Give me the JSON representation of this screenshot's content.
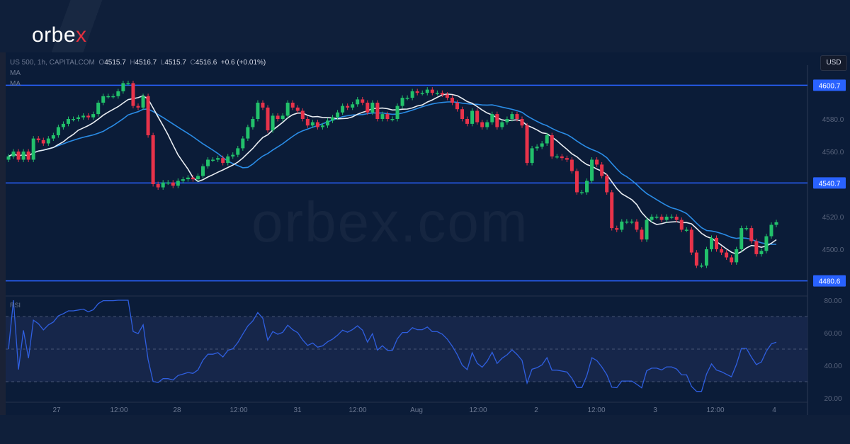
{
  "brand": {
    "logo_text": "orbe",
    "logo_x": "x",
    "watermark": "orbex.com"
  },
  "header": {
    "symbol": "US 500, 1h, CAPITALCOM",
    "o_label": "O",
    "open": "4515.7",
    "h_label": "H",
    "high": "4516.7",
    "l_label": "L",
    "low": "4515.7",
    "c_label": "C",
    "close": "4516.6",
    "change": "+0.6 (+0.01%)",
    "indicators": [
      "MA",
      "MA"
    ]
  },
  "currency_button": "USD",
  "rsi_label": "RSI",
  "colors": {
    "up": "#22c16b",
    "down": "#e8334a",
    "ma_fast": "#e9edf2",
    "ma_slow": "#2a8ce6",
    "level": "#2962ff",
    "rsi": "#2f5fe0",
    "background": "#0b1c38"
  },
  "chart_data": {
    "type": "candlestick",
    "interval": "1h",
    "price_axis": {
      "ticks": [
        "4580.0",
        "4560.0",
        "4520.0",
        "4500.0"
      ],
      "range": [
        4472,
        4620
      ]
    },
    "levels": [
      "4600.7",
      "4540.7",
      "4480.6"
    ],
    "rsi_axis": {
      "ticks": [
        "80.00",
        "60.00",
        "40.00",
        "20.00"
      ],
      "bands": [
        30,
        50,
        70
      ]
    },
    "time_labels": [
      "27",
      "12:00",
      "28",
      "12:00",
      "31",
      "12:00",
      "Aug",
      "12:00",
      "2",
      "12:00",
      "3",
      "12:00",
      "4"
    ],
    "moving_averages": [
      "MA",
      "MA"
    ],
    "close": [
      4557,
      4560,
      4555,
      4560,
      4555,
      4568,
      4567,
      4565,
      4568,
      4570,
      4575,
      4577,
      4580,
      4580,
      4581,
      4582,
      4581,
      4583,
      4590,
      4594,
      4594,
      4594,
      4597,
      4602,
      4602,
      4588,
      4587,
      4594,
      4570,
      4540,
      4538,
      4541,
      4541,
      4539,
      4542,
      4543,
      4544,
      4543,
      4545,
      4551,
      4555,
      4555,
      4556,
      4553,
      4557,
      4558,
      4562,
      4568,
      4575,
      4580,
      4590,
      4587,
      4573,
      4582,
      4580,
      4582,
      4590,
      4587,
      4585,
      4580,
      4576,
      4578,
      4575,
      4576,
      4579,
      4581,
      4584,
      4588,
      4587,
      4589,
      4592,
      4590,
      4584,
      4590,
      4580,
      4583,
      4580,
      4580,
      4588,
      4593,
      4593,
      4597,
      4596,
      4596,
      4598,
      4596,
      4596,
      4595,
      4593,
      4590,
      4586,
      4580,
      4577,
      4585,
      4578,
      4575,
      4578,
      4583,
      4575,
      4578,
      4580,
      4583,
      4580,
      4576,
      4553,
      4562,
      4563,
      4565,
      4570,
      4557,
      4557,
      4556,
      4555,
      4548,
      4535,
      4535,
      4542,
      4555,
      4552,
      4545,
      4535,
      4513,
      4512,
      4517,
      4517,
      4517,
      4512,
      4506,
      4518,
      4520,
      4520,
      4518,
      4520,
      4520,
      4518,
      4512,
      4512,
      4498,
      4490,
      4490,
      4500,
      4507,
      4500,
      4498,
      4495,
      4492,
      4500,
      4513,
      4513,
      4505,
      4497,
      4499,
      4508,
      4515,
      4516.6
    ]
  }
}
